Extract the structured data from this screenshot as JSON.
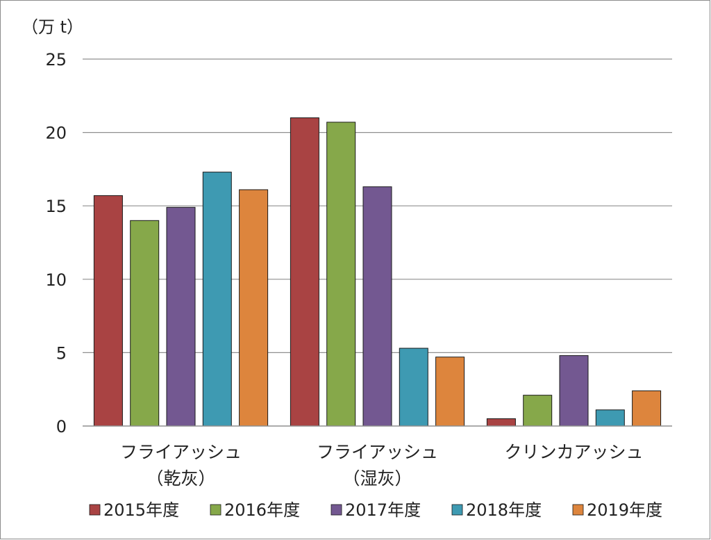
{
  "chart_data": {
    "type": "bar",
    "title": "",
    "unit_label": "（万 t）",
    "xlabel": "",
    "ylabel": "",
    "ylim": [
      0,
      25
    ],
    "yticks": [
      0,
      5,
      10,
      15,
      20,
      25
    ],
    "grid": true,
    "legend_position": "bottom",
    "categories": [
      [
        "フライアッシュ",
        "（乾灰）"
      ],
      [
        "フライアッシュ",
        "（湿灰）"
      ],
      [
        "クリンカアッシュ"
      ]
    ],
    "series": [
      {
        "name": "2015年度",
        "color": "#A94343",
        "values": [
          15.7,
          21.0,
          0.5
        ]
      },
      {
        "name": "2016年度",
        "color": "#86A84A",
        "values": [
          14.0,
          20.7,
          2.1
        ]
      },
      {
        "name": "2017年度",
        "color": "#735891",
        "values": [
          14.9,
          16.3,
          4.8
        ]
      },
      {
        "name": "2018年度",
        "color": "#3E9AB2",
        "values": [
          17.3,
          5.3,
          1.1
        ]
      },
      {
        "name": "2019年度",
        "color": "#DD853D",
        "values": [
          16.1,
          4.7,
          2.4
        ]
      }
    ]
  }
}
